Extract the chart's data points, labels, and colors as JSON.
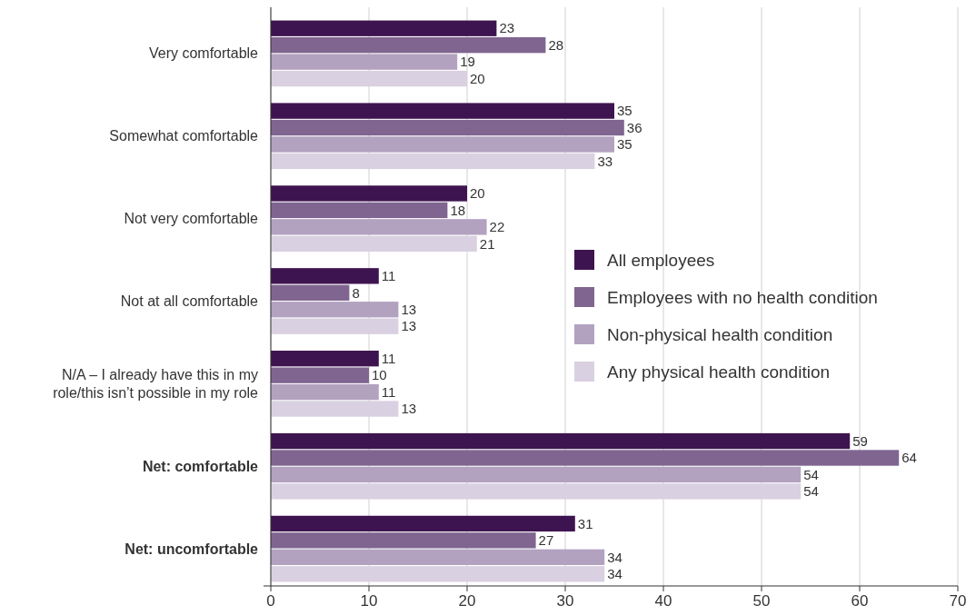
{
  "chart_data": {
    "type": "bar",
    "orientation": "horizontal",
    "categories": [
      "Very comfortable",
      "Somewhat comfortable",
      "Not very comfortable",
      "Not at all comfortable",
      "N/A – I already have this in my role/this isn’t possible in my role",
      "Net: comfortable",
      "Net: uncomfortable"
    ],
    "series": [
      {
        "name": "All employees",
        "color": "#3e1450",
        "values": [
          23,
          35,
          20,
          11,
          11,
          59,
          31
        ]
      },
      {
        "name": "Employees with no health condition",
        "color": "#7f6590",
        "values": [
          28,
          36,
          18,
          8,
          10,
          64,
          27
        ]
      },
      {
        "name": "Non-physical health condition",
        "color": "#b2a2c0",
        "values": [
          19,
          35,
          22,
          13,
          11,
          54,
          34
        ]
      },
      {
        "name": "Any physical health condition",
        "color": "#d9d0e1",
        "values": [
          20,
          33,
          21,
          13,
          13,
          54,
          34
        ]
      }
    ],
    "xlim": [
      0,
      70
    ],
    "xticks": [
      0,
      10,
      20,
      30,
      40,
      50,
      60,
      70
    ],
    "grid": "x",
    "legend": "right",
    "data_labels": true
  }
}
